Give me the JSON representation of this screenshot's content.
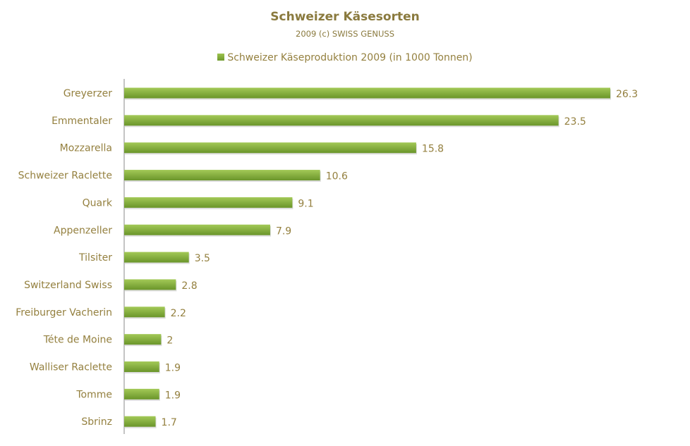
{
  "chart_data": {
    "type": "bar",
    "orientation": "horizontal",
    "title": "Schweizer Käsesorten",
    "subtitle": "2009 (c) SWISS GENUSS",
    "legend": {
      "position": "top",
      "entries": [
        "Schweizer Käseproduktion 2009 (in 1000 Tonnen)"
      ]
    },
    "categories": [
      "Greyerzer",
      "Emmentaler",
      "Mozzarella",
      "Schweizer Raclette",
      "Quark",
      "Appenzeller",
      "Tilsiter",
      "Switzerland Swiss",
      "Freiburger Vacherin",
      "Téte de Moine",
      "Walliser Raclette",
      "Tomme",
      "Sbrinz"
    ],
    "series": [
      {
        "name": "Schweizer Käseproduktion 2009 (in 1000 Tonnen)",
        "values": [
          26.3,
          23.5,
          15.8,
          10.6,
          9.1,
          7.9,
          3.5,
          2.8,
          2.2,
          2,
          1.9,
          1.9,
          1.7
        ]
      }
    ],
    "xlim": [
      0,
      26.3
    ],
    "grid": false,
    "data_labels": true,
    "colors": {
      "bar_top": "#9dc34e",
      "bar_bottom": "#6f9a2c",
      "text": "#94803f"
    }
  }
}
